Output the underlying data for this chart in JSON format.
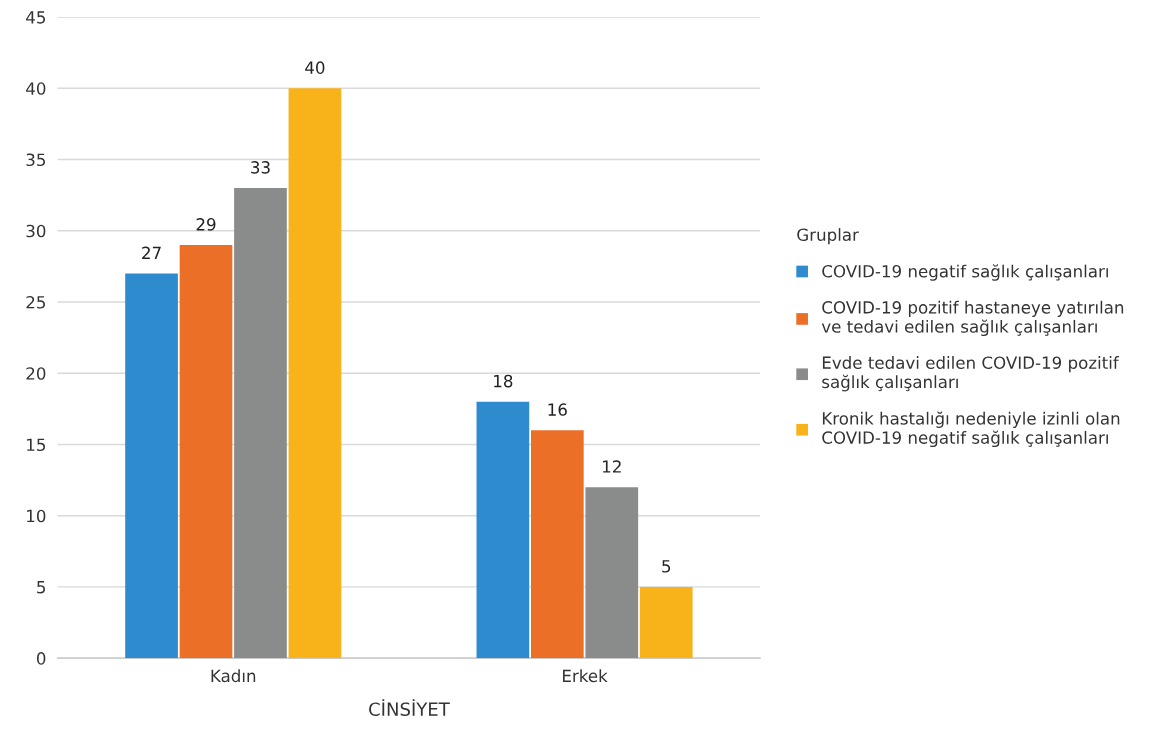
{
  "chart_data": {
    "type": "bar",
    "xlabel": "CİNSİYET",
    "legend_title": "Gruplar",
    "categories": [
      "Kadın",
      "Erkek"
    ],
    "series": [
      {
        "name": "COVID-19 negatif sağlık çalışanları",
        "color": "#2e8bce",
        "values": [
          27,
          18
        ]
      },
      {
        "name": "COVID-19 pozitif hastaneye yatırılan\nve tedavi edilen sağlık çalışanları",
        "color": "#ec6f28",
        "values": [
          29,
          16
        ]
      },
      {
        "name": "Evde tedavi edilen COVID-19 pozitif\nsağlık çalışanları",
        "color": "#8a8c8c",
        "values": [
          33,
          12
        ]
      },
      {
        "name": "Kronik hastalığı nedeniyle izinli olan\nCOVID-19 negatif sağlık çalışanları",
        "color": "#f8b31b",
        "values": [
          40,
          5
        ]
      }
    ],
    "ylim": [
      0,
      45
    ],
    "yticks": [
      0,
      5,
      10,
      15,
      20,
      25,
      30,
      35,
      40,
      45
    ],
    "grid": "y",
    "legend": "right",
    "data_labels": true
  }
}
